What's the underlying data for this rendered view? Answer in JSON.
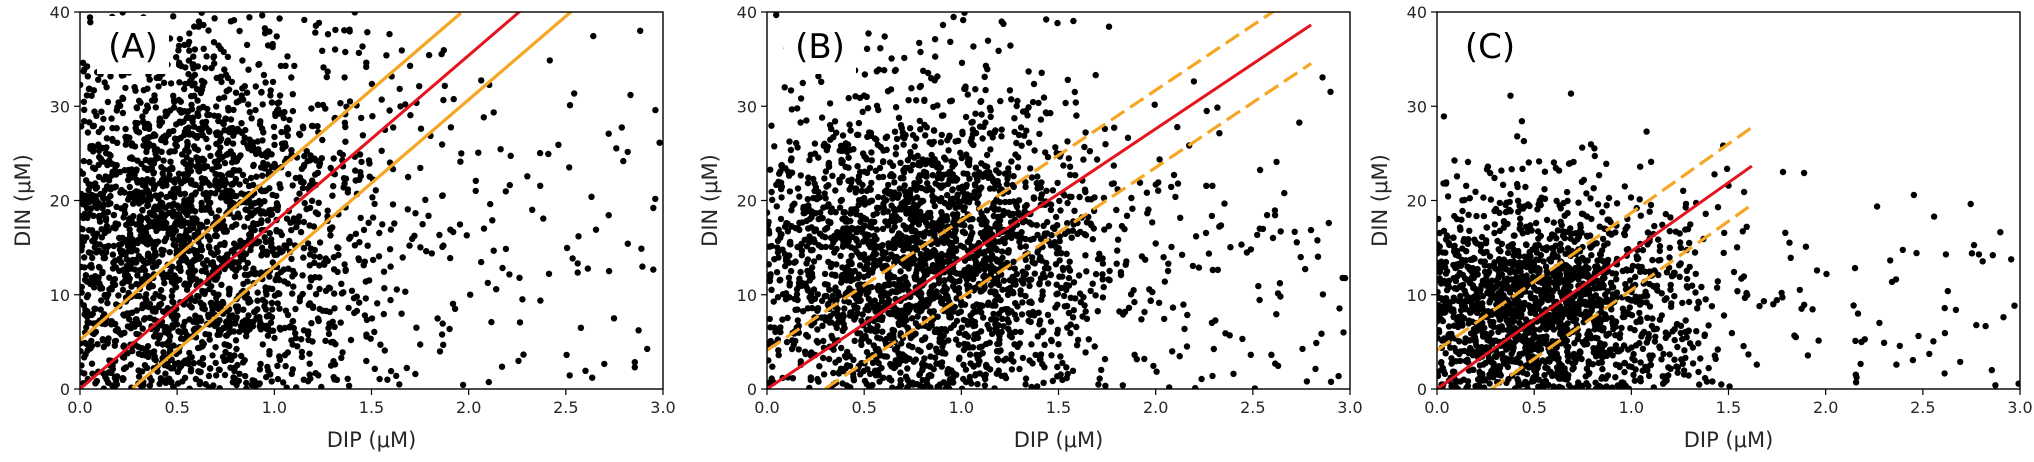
{
  "colors": {
    "points": "#000000",
    "fit_line": "#e4141e",
    "bounds": "#f5a623",
    "frame": "#000000"
  },
  "chart_data": [
    {
      "type": "scatter",
      "panel_label": "(A)",
      "xlabel": "DIP (μM)",
      "ylabel": "DIN (μM)",
      "xlim": [
        0,
        3.0
      ],
      "ylim": [
        0,
        40
      ],
      "xticks": [
        "0.0",
        "0.5",
        "1.0",
        "1.5",
        "2.0",
        "2.5",
        "3.0"
      ],
      "yticks": [
        "0",
        "10",
        "20",
        "30",
        "40"
      ],
      "grid": false,
      "fit_line": {
        "slope": 17.7,
        "intercept": 0.0,
        "x_range": [
          0,
          2.27
        ],
        "style": "solid"
      },
      "bounds": [
        {
          "slope": 17.7,
          "intercept": 5.2,
          "x_range": [
            0,
            1.96
          ],
          "style": "solid"
        },
        {
          "slope": 17.7,
          "intercept": -4.7,
          "x_range": [
            0.27,
            2.55
          ],
          "style": "solid"
        }
      ],
      "scatter_density": {
        "x_mean": 0.6,
        "x_sd": 0.45,
        "y_mean": 17,
        "y_sd": 12,
        "n": 2600
      }
    },
    {
      "type": "scatter",
      "panel_label": "(B)",
      "xlabel": "DIP (μM)",
      "ylabel": "DIN (μM)",
      "xlim": [
        0,
        3.0
      ],
      "ylim": [
        0,
        40
      ],
      "xticks": [
        "0.0",
        "0.5",
        "1.0",
        "1.5",
        "2.0",
        "2.5",
        "3.0"
      ],
      "yticks": [
        "0",
        "10",
        "20",
        "30",
        "40"
      ],
      "grid": false,
      "fit_line": {
        "slope": 13.8,
        "intercept": 0.0,
        "x_range": [
          0,
          2.8
        ],
        "style": "solid"
      },
      "bounds": [
        {
          "slope": 13.8,
          "intercept": 4.1,
          "x_range": [
            0,
            2.8
          ],
          "style": "dashed"
        },
        {
          "slope": 13.8,
          "intercept": -4.1,
          "x_range": [
            0.3,
            2.8
          ],
          "style": "dashed"
        }
      ],
      "scatter_density": {
        "x_mean": 0.8,
        "x_sd": 0.45,
        "y_mean": 14,
        "y_sd": 9,
        "n": 2600
      }
    },
    {
      "type": "scatter",
      "panel_label": "(C)",
      "xlabel": "DIP (μM)",
      "ylabel": "DIN (μM)",
      "xlim": [
        0,
        3.0
      ],
      "ylim": [
        0,
        40
      ],
      "xticks": [
        "0.0",
        "0.5",
        "1.0",
        "1.5",
        "2.0",
        "2.5",
        "3.0"
      ],
      "yticks": [
        "0",
        "10",
        "20",
        "30",
        "40"
      ],
      "grid": false,
      "fit_line": {
        "slope": 14.6,
        "intercept": 0.0,
        "x_range": [
          0,
          1.62
        ],
        "style": "solid"
      },
      "bounds": [
        {
          "slope": 14.6,
          "intercept": 4.1,
          "x_range": [
            0,
            1.62
          ],
          "style": "dashed"
        },
        {
          "slope": 14.6,
          "intercept": -4.1,
          "x_range": [
            0.28,
            1.62
          ],
          "style": "dashed"
        }
      ],
      "scatter_density": {
        "x_mean": 0.55,
        "x_sd": 0.4,
        "y_mean": 9,
        "y_sd": 6,
        "n": 1900
      }
    }
  ]
}
